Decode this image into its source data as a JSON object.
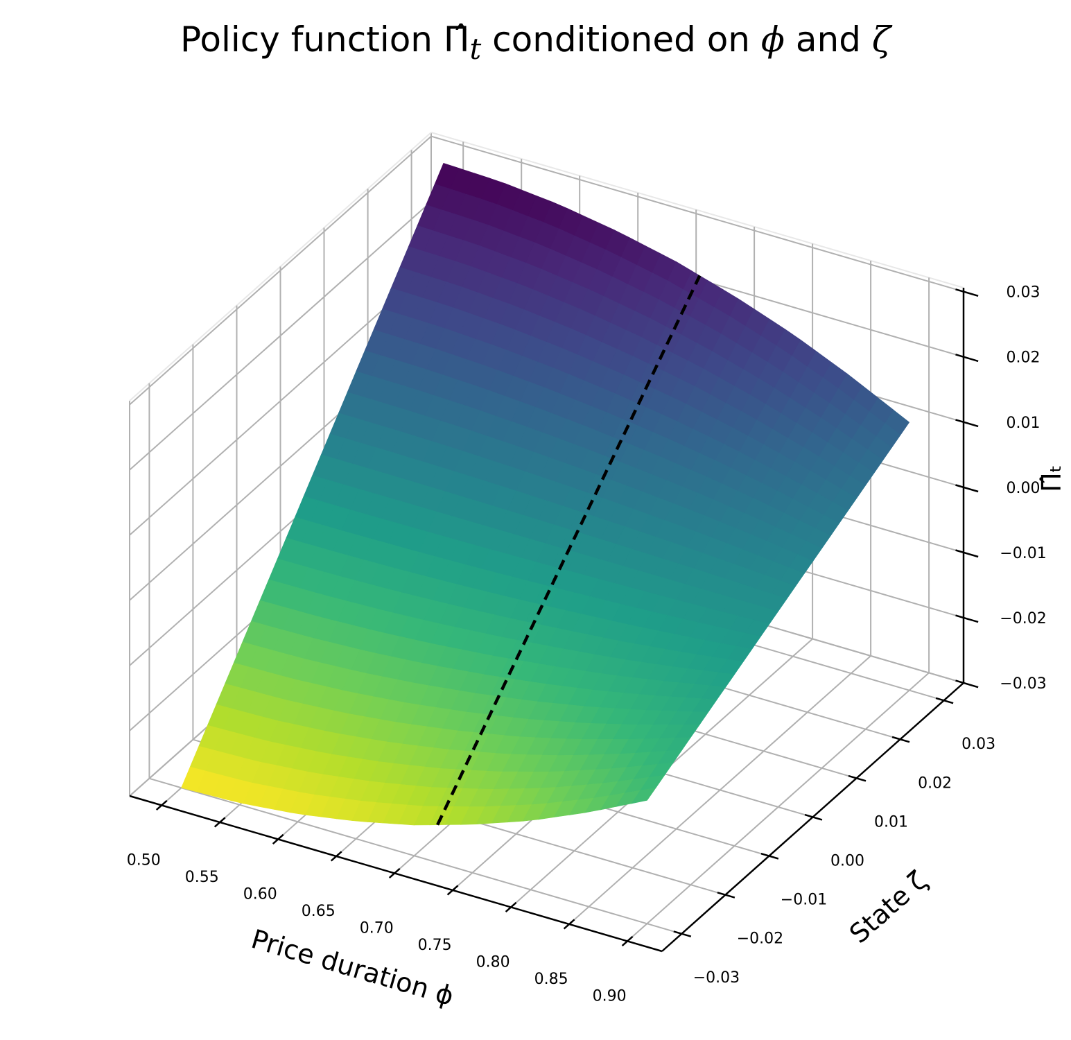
{
  "chart_data": {
    "type": "surface",
    "title_parts": [
      "Policy function ",
      "Π̂",
      "t",
      " conditioned on ",
      "ϕ",
      " and ",
      "ζ"
    ],
    "xlabel": "Price duration ϕ",
    "ylabel": "State ζ",
    "zlabel": "Π̂ₜ",
    "xlim": [
      0.4725,
      0.9297
    ],
    "ylim": [
      -0.0345,
      0.0345
    ],
    "zlim": [
      -0.03,
      0.0306
    ],
    "xticks": [
      "0.50",
      "0.55",
      "0.60",
      "0.65",
      "0.70",
      "0.75",
      "0.80",
      "0.85",
      "0.90"
    ],
    "yticks": [
      "−0.03",
      "−0.02",
      "−0.01",
      "0.00",
      "0.01",
      "0.02",
      "0.03"
    ],
    "zticks": [
      "−0.03",
      "−0.02",
      "−0.01",
      "0.00",
      "0.01",
      "0.02",
      "0.03"
    ],
    "grid": true,
    "colormap": "viridis_r",
    "surface": {
      "phi": [
        0.5,
        0.55,
        0.6,
        0.65,
        0.7,
        0.75,
        0.8,
        0.85,
        0.9
      ],
      "zeta": [
        -0.03,
        -0.02,
        -0.01,
        0,
        0.01,
        0.02,
        0.03
      ],
      "z": [
        [
          -0.03,
          -0.02,
          -0.01,
          0,
          0.01,
          0.02,
          0.03
        ],
        [
          -0.0297,
          -0.0198,
          -0.0099,
          0,
          0.0099,
          0.0198,
          0.0297
        ],
        [
          -0.0288,
          -0.0192,
          -0.0096,
          0,
          0.0096,
          0.0192,
          0.0288
        ],
        [
          -0.0273,
          -0.0182,
          -0.0091,
          0,
          0.0091,
          0.0182,
          0.0273
        ],
        [
          -0.0253,
          -0.0168,
          -0.0084,
          0,
          0.0084,
          0.0168,
          0.0253
        ],
        [
          -0.0226,
          -0.0151,
          -0.0075,
          0,
          0.0075,
          0.0151,
          0.0226
        ],
        [
          -0.0194,
          -0.0129,
          -0.0065,
          0,
          0.0065,
          0.0129,
          0.0194
        ],
        [
          -0.0155,
          -0.0103,
          -0.0052,
          0,
          0.0052,
          0.0103,
          0.0155
        ],
        [
          -0.0111,
          -0.0074,
          -0.0037,
          0,
          0.0037,
          0.0074,
          0.0111
        ]
      ]
    },
    "dashed_line": {
      "phi": 0.72,
      "color": "#000000"
    },
    "viridis": [
      "#440154",
      "#482878",
      "#3e4989",
      "#31688e",
      "#26828e",
      "#1f9e89",
      "#35b779",
      "#6ece58",
      "#b5de2b",
      "#fde725"
    ],
    "grid_color": "#b0b0b0"
  }
}
